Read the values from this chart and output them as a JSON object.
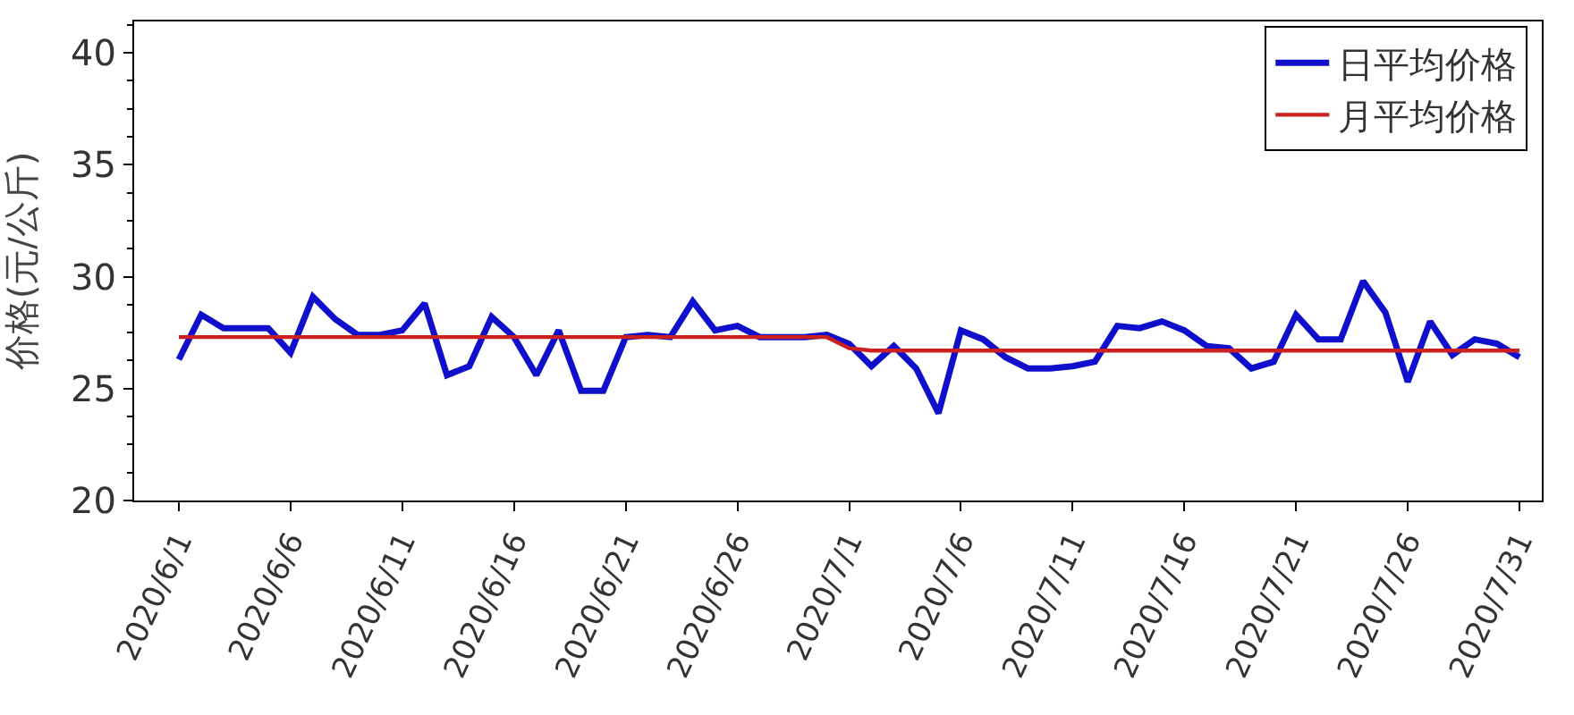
{
  "chart_data": {
    "type": "line",
    "ylabel": "价格(元/公斤)",
    "x": [
      "2020-06-01",
      "2020-06-02",
      "2020-06-03",
      "2020-06-04",
      "2020-06-05",
      "2020-06-06",
      "2020-06-07",
      "2020-06-08",
      "2020-06-09",
      "2020-06-10",
      "2020-06-11",
      "2020-06-12",
      "2020-06-13",
      "2020-06-14",
      "2020-06-15",
      "2020-06-16",
      "2020-06-17",
      "2020-06-18",
      "2020-06-19",
      "2020-06-20",
      "2020-06-21",
      "2020-06-22",
      "2020-06-23",
      "2020-06-24",
      "2020-06-25",
      "2020-06-26",
      "2020-06-27",
      "2020-06-28",
      "2020-06-29",
      "2020-06-30",
      "2020-07-01",
      "2020-07-02",
      "2020-07-03",
      "2020-07-04",
      "2020-07-05",
      "2020-07-06",
      "2020-07-07",
      "2020-07-08",
      "2020-07-09",
      "2020-07-10",
      "2020-07-11",
      "2020-07-12",
      "2020-07-13",
      "2020-07-14",
      "2020-07-15",
      "2020-07-16",
      "2020-07-17",
      "2020-07-18",
      "2020-07-19",
      "2020-07-20",
      "2020-07-21",
      "2020-07-22",
      "2020-07-23",
      "2020-07-24",
      "2020-07-25",
      "2020-07-26",
      "2020-07-27",
      "2020-07-28",
      "2020-07-29",
      "2020-07-30",
      "2020-07-31"
    ],
    "series": [
      {
        "name": "日平均价格",
        "color": "#1010cc",
        "values": [
          26.3,
          28.3,
          27.7,
          27.7,
          27.7,
          26.6,
          29.1,
          28.1,
          27.4,
          27.4,
          27.6,
          28.8,
          25.6,
          26.0,
          28.2,
          27.3,
          25.6,
          27.6,
          24.9,
          24.9,
          27.3,
          27.4,
          27.3,
          28.9,
          27.6,
          27.8,
          27.3,
          27.3,
          27.3,
          27.4,
          27.0,
          26.0,
          26.9,
          25.9,
          23.9,
          27.6,
          27.2,
          26.4,
          25.9,
          25.9,
          26.0,
          26.2,
          27.8,
          27.7,
          28.0,
          27.6,
          26.9,
          26.8,
          25.9,
          26.2,
          28.3,
          27.2,
          27.2,
          29.8,
          28.4,
          25.3,
          28.0,
          26.5,
          27.2,
          27.0,
          26.4
        ]
      },
      {
        "name": "月平均价格",
        "color": "#cc1f1f",
        "values": [
          27.3,
          27.3,
          27.3,
          27.3,
          27.3,
          27.3,
          27.3,
          27.3,
          27.3,
          27.3,
          27.3,
          27.3,
          27.3,
          27.3,
          27.3,
          27.3,
          27.3,
          27.3,
          27.3,
          27.3,
          27.3,
          27.3,
          27.3,
          27.3,
          27.3,
          27.3,
          27.3,
          27.3,
          27.3,
          27.3,
          26.8,
          26.7,
          26.7,
          26.7,
          26.7,
          26.7,
          26.7,
          26.7,
          26.7,
          26.7,
          26.7,
          26.7,
          26.7,
          26.7,
          26.7,
          26.7,
          26.7,
          26.7,
          26.7,
          26.7,
          26.7,
          26.7,
          26.7,
          26.7,
          26.7,
          26.7,
          26.7,
          26.7,
          26.7,
          26.7,
          26.7
        ]
      }
    ],
    "xlim": [
      "2020-05-30",
      "2020-08-01"
    ],
    "xticks": [
      {
        "value": "2020-06-01",
        "label": "2020/6/1"
      },
      {
        "value": "2020-06-06",
        "label": "2020/6/6"
      },
      {
        "value": "2020-06-11",
        "label": "2020/6/11"
      },
      {
        "value": "2020-06-16",
        "label": "2020/6/16"
      },
      {
        "value": "2020-06-21",
        "label": "2020/6/21"
      },
      {
        "value": "2020-06-26",
        "label": "2020/6/26"
      },
      {
        "value": "2020-07-01",
        "label": "2020/7/1"
      },
      {
        "value": "2020-07-06",
        "label": "2020/7/6"
      },
      {
        "value": "2020-07-11",
        "label": "2020/7/11"
      },
      {
        "value": "2020-07-16",
        "label": "2020/7/16"
      },
      {
        "value": "2020-07-21",
        "label": "2020/7/21"
      },
      {
        "value": "2020-07-26",
        "label": "2020/7/26"
      },
      {
        "value": "2020-07-31",
        "label": "2020/7/31"
      }
    ],
    "ylim": [
      20,
      41.4
    ],
    "yticks": [
      20,
      25,
      30,
      35,
      40
    ],
    "legend": "top right",
    "marker": "none",
    "line_style": "solid"
  }
}
